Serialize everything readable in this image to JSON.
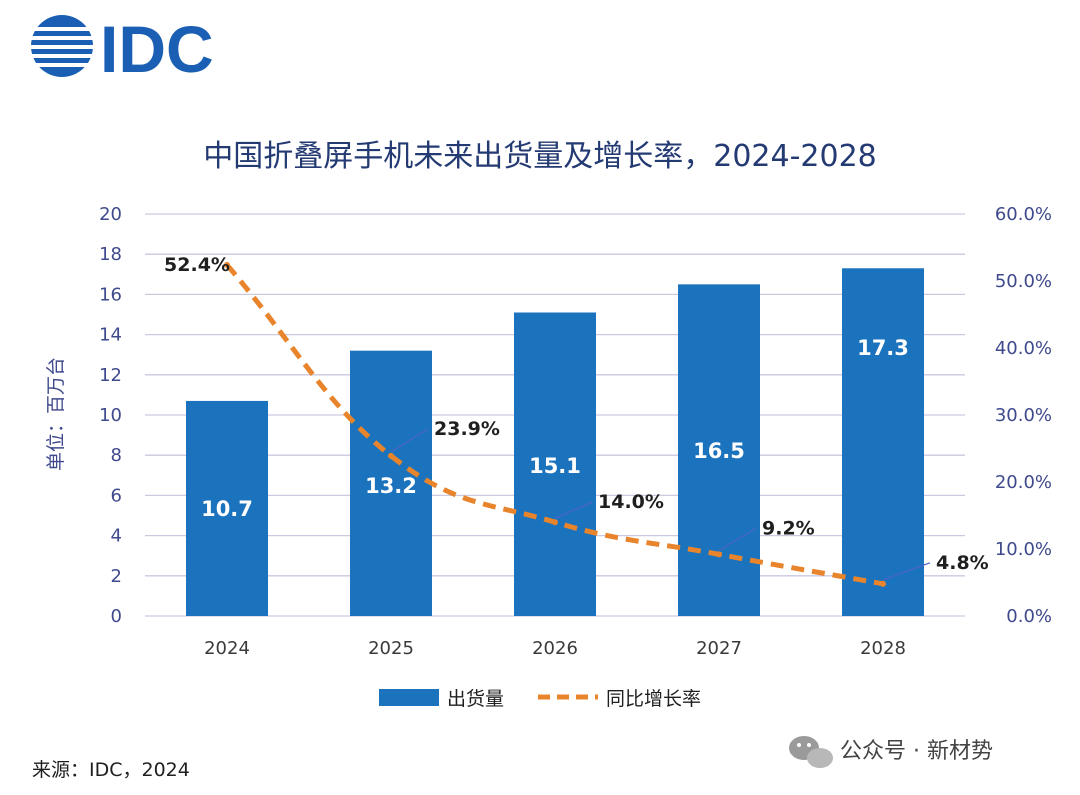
{
  "brand": {
    "name": "IDC",
    "color": "#1a5fb4"
  },
  "chart_data": {
    "type": "bar+line",
    "title": "中国折叠屏手机未来出货量及增长率，2024-2028",
    "ylabel": "单位：百万台",
    "categories": [
      "2024",
      "2025",
      "2026",
      "2027",
      "2028"
    ],
    "ylim": [
      0,
      20
    ],
    "yticks": [
      "0",
      "2",
      "4",
      "6",
      "8",
      "10",
      "12",
      "14",
      "16",
      "18",
      "20"
    ],
    "y2lim": [
      0,
      60
    ],
    "y2ticks": [
      "0.0%",
      "10.0%",
      "20.0%",
      "30.0%",
      "40.0%",
      "50.0%",
      "60.0%"
    ],
    "series": [
      {
        "name": "出货量",
        "type": "bar",
        "axis": "left",
        "color": "#1c73bd",
        "values": [
          10.7,
          13.2,
          15.1,
          16.5,
          17.3
        ],
        "labels": [
          "10.7",
          "13.2",
          "15.1",
          "16.5",
          "17.3"
        ]
      },
      {
        "name": "同比增长率",
        "type": "line",
        "style": "dashed",
        "axis": "right",
        "color": "#e8842c",
        "values": [
          52.4,
          23.9,
          14.0,
          9.2,
          4.8
        ],
        "labels": [
          "52.4%",
          "23.9%",
          "14.0%",
          "9.2%",
          "4.8%"
        ]
      }
    ],
    "grid": true,
    "legend_position": "bottom"
  },
  "source": "来源：IDC，2024",
  "watermark": "公众号 · 新材势"
}
